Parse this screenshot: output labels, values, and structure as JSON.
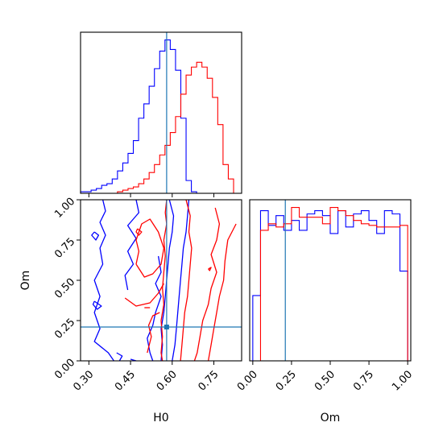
{
  "chart_data": {
    "type": "corner",
    "colors": {
      "series_a": "#0000ff",
      "series_b": "#ff0000",
      "truth": "#1f77b4",
      "axes": "#000000"
    },
    "parameters": [
      "H0",
      "Om"
    ],
    "truth": {
      "H0": 0.58,
      "Om": 0.21
    },
    "panels": [
      {
        "id": "hist_H0",
        "type": "histogram-step",
        "xlim": [
          0.27,
          0.85
        ],
        "bins": [
          0.27,
          0.289,
          0.308,
          0.327,
          0.346,
          0.365,
          0.384,
          0.403,
          0.422,
          0.441,
          0.46,
          0.479,
          0.498,
          0.517,
          0.536,
          0.555,
          0.574,
          0.593,
          0.612,
          0.631,
          0.65,
          0.669,
          0.688,
          0.707,
          0.726,
          0.745,
          0.764,
          0.783,
          0.802,
          0.821,
          0.84
        ],
        "series": [
          {
            "color_key": "series_a",
            "counts": [
              1,
              1,
              2,
              3,
              5,
              6,
              9,
              14,
              19,
              25,
              33,
              47,
              56,
              67,
              78,
              89,
              96,
              90,
              77,
              47,
              8,
              1,
              0,
              0,
              0,
              0,
              0,
              0,
              0,
              0
            ]
          },
          {
            "color_key": "series_b",
            "counts": [
              0,
              0,
              0,
              0,
              0,
              0,
              0,
              1,
              2,
              3,
              4,
              6,
              9,
              13,
              18,
              24,
              30,
              38,
              48,
              62,
              74,
              79,
              82,
              79,
              72,
              60,
              43,
              18,
              9,
              0
            ]
          }
        ]
      },
      {
        "id": "hist_Om",
        "type": "histogram-step",
        "xlim": [
          -0.02,
          1.02
        ],
        "bins": [
          0.0,
          0.05,
          0.1,
          0.15,
          0.2,
          0.25,
          0.3,
          0.35,
          0.4,
          0.45,
          0.5,
          0.55,
          0.6,
          0.65,
          0.7,
          0.75,
          0.8,
          0.85,
          0.9,
          0.95,
          1.0
        ],
        "series": [
          {
            "color_key": "series_a",
            "counts": [
              40,
              92,
              83,
              89,
              80,
              86,
              80,
              90,
              92,
              89,
              78,
              92,
              82,
              90,
              92,
              86,
              78,
              92,
              90,
              55
            ]
          },
          {
            "color_key": "series_b",
            "counts": [
              0,
              80,
              84,
              82,
              84,
              94,
              88,
              88,
              88,
              84,
              94,
              92,
              89,
              86,
              84,
              83,
              82,
              82,
              82,
              83
            ]
          }
        ]
      },
      {
        "id": "contour_H0_Om",
        "type": "contour",
        "xlim": [
          0.27,
          0.85
        ],
        "ylim": [
          0.0,
          1.0
        ],
        "series": [
          {
            "color_key": "series_a",
            "lines": [
              [
                [
                  0.35,
                  1.0
                ],
                [
                  0.36,
                  0.93
                ],
                [
                  0.34,
                  0.86
                ],
                [
                  0.36,
                  0.78
                ],
                [
                  0.34,
                  0.7
                ],
                [
                  0.35,
                  0.6
                ],
                [
                  0.32,
                  0.5
                ],
                [
                  0.34,
                  0.4
                ],
                [
                  0.32,
                  0.3
                ],
                [
                  0.34,
                  0.2
                ],
                [
                  0.32,
                  0.12
                ],
                [
                  0.37,
                  0.05
                ],
                [
                  0.39,
                  0.0
                ]
              ],
              [
                [
                  0.47,
                  1.0
                ],
                [
                  0.48,
                  0.92
                ],
                [
                  0.44,
                  0.84
                ],
                [
                  0.47,
                  0.76
                ],
                [
                  0.44,
                  0.68
                ],
                [
                  0.46,
                  0.6
                ],
                [
                  0.43,
                  0.53
                ],
                [
                  0.44,
                  0.44
                ]
              ],
              [
                [
                  0.55,
                  0.65
                ],
                [
                  0.56,
                  0.55
                ],
                [
                  0.54,
                  0.48
                ],
                [
                  0.56,
                  0.4
                ],
                [
                  0.54,
                  0.3
                ],
                [
                  0.53,
                  0.22
                ],
                [
                  0.51,
                  0.14
                ],
                [
                  0.52,
                  0.05
                ],
                [
                  0.53,
                  0.0
                ]
              ],
              [
                [
                  0.59,
                  1.0
                ],
                [
                  0.605,
                  0.9
                ],
                [
                  0.6,
                  0.8
                ],
                [
                  0.59,
                  0.7
                ],
                [
                  0.585,
                  0.6
                ],
                [
                  0.58,
                  0.5
                ],
                [
                  0.575,
                  0.4
                ],
                [
                  0.57,
                  0.3
                ],
                [
                  0.56,
                  0.2
                ],
                [
                  0.565,
                  0.1
                ],
                [
                  0.56,
                  0.0
                ]
              ],
              [
                [
                  0.66,
                  1.0
                ],
                [
                  0.655,
                  0.9
                ],
                [
                  0.65,
                  0.8
                ],
                [
                  0.64,
                  0.7
                ],
                [
                  0.635,
                  0.6
                ],
                [
                  0.63,
                  0.5
                ],
                [
                  0.625,
                  0.4
                ],
                [
                  0.62,
                  0.3
                ],
                [
                  0.615,
                  0.2
                ],
                [
                  0.61,
                  0.1
                ],
                [
                  0.6,
                  0.0
                ]
              ],
              [
                [
                  0.32,
                  0.8
                ],
                [
                  0.335,
                  0.78
                ],
                [
                  0.325,
                  0.75
                ],
                [
                  0.31,
                  0.78
                ],
                [
                  0.32,
                  0.8
                ]
              ],
              [
                [
                  0.32,
                  0.37
                ],
                [
                  0.345,
                  0.34
                ],
                [
                  0.33,
                  0.32
                ],
                [
                  0.315,
                  0.35
                ],
                [
                  0.32,
                  0.37
                ]
              ],
              [
                [
                  0.4,
                  0.05
                ],
                [
                  0.42,
                  0.03
                ],
                [
                  0.41,
                  0.0
                ]
              ],
              [
                [
                  0.45,
                  0.01
                ],
                [
                  0.47,
                  0.0
                ]
              ]
            ]
          },
          {
            "color_key": "series_b",
            "lines": [
              [
                [
                  0.58,
                  1.0
                ],
                [
                  0.575,
                  0.92
                ],
                [
                  0.58,
                  0.85
                ],
                [
                  0.57,
                  0.75
                ],
                [
                  0.575,
                  0.65
                ],
                [
                  0.57,
                  0.55
                ],
                [
                  0.565,
                  0.45
                ],
                [
                  0.57,
                  0.35
                ],
                [
                  0.56,
                  0.25
                ],
                [
                  0.565,
                  0.15
                ],
                [
                  0.56,
                  0.05
                ],
                [
                  0.565,
                  0.0
                ]
              ],
              [
                [
                  0.65,
                  1.0
                ],
                [
                  0.665,
                  0.9
                ],
                [
                  0.66,
                  0.8
                ],
                [
                  0.67,
                  0.7
                ],
                [
                  0.665,
                  0.6
                ],
                [
                  0.66,
                  0.5
                ],
                [
                  0.655,
                  0.4
                ],
                [
                  0.645,
                  0.3
                ],
                [
                  0.64,
                  0.2
                ],
                [
                  0.635,
                  0.1
                ],
                [
                  0.63,
                  0.0
                ]
              ],
              [
                [
                  0.755,
                  0.95
                ],
                [
                  0.77,
                  0.85
                ],
                [
                  0.76,
                  0.75
                ],
                [
                  0.74,
                  0.66
                ],
                [
                  0.76,
                  0.55
                ],
                [
                  0.74,
                  0.45
                ],
                [
                  0.73,
                  0.35
                ],
                [
                  0.71,
                  0.25
                ],
                [
                  0.7,
                  0.15
                ],
                [
                  0.69,
                  0.05
                ],
                [
                  0.68,
                  0.0
                ]
              ],
              [
                [
                  0.83,
                  0.85
                ],
                [
                  0.8,
                  0.75
                ],
                [
                  0.79,
                  0.62
                ],
                [
                  0.785,
                  0.5
                ],
                [
                  0.77,
                  0.4
                ],
                [
                  0.76,
                  0.3
                ],
                [
                  0.75,
                  0.2
                ],
                [
                  0.74,
                  0.1
                ],
                [
                  0.73,
                  0.0
                ]
              ],
              [
                [
                  0.47,
                  0.6
                ],
                [
                  0.5,
                  0.52
                ],
                [
                  0.53,
                  0.54
                ],
                [
                  0.56,
                  0.6
                ],
                [
                  0.57,
                  0.7
                ],
                [
                  0.55,
                  0.8
                ],
                [
                  0.52,
                  0.88
                ],
                [
                  0.49,
                  0.85
                ],
                [
                  0.47,
                  0.75
                ],
                [
                  0.48,
                  0.68
                ],
                [
                  0.47,
                  0.6
                ]
              ],
              [
                [
                  0.43,
                  0.39
                ],
                [
                  0.47,
                  0.34
                ],
                [
                  0.52,
                  0.36
                ],
                [
                  0.55,
                  0.42
                ],
                [
                  0.57,
                  0.48
                ]
              ],
              [
                [
                  0.475,
                  0.82
                ],
                [
                  0.49,
                  0.8
                ],
                [
                  0.48,
                  0.78
                ],
                [
                  0.47,
                  0.8
                ],
                [
                  0.475,
                  0.82
                ]
              ],
              [
                [
                  0.51,
                  0.05
                ],
                [
                  0.525,
                  0.15
                ],
                [
                  0.515,
                  0.22
                ],
                [
                  0.53,
                  0.28
                ],
                [
                  0.555,
                  0.3
                ]
              ],
              [
                [
                  0.5,
                  0.33
                ],
                [
                  0.52,
                  0.33
                ]
              ],
              [
                [
                  0.73,
                  0.57
                ],
                [
                  0.74,
                  0.58
                ],
                [
                  0.735,
                  0.56
                ],
                [
                  0.73,
                  0.57
                ]
              ]
            ]
          }
        ]
      }
    ],
    "axes": {
      "H0": {
        "ticks": [
          "0.30",
          "0.45",
          "0.60",
          "0.75"
        ],
        "tick_values": [
          0.3,
          0.45,
          0.6,
          0.75
        ],
        "xlabel": "H0"
      },
      "Om_x": {
        "ticks": [
          "0.00",
          "0.25",
          "0.50",
          "0.75",
          "1.00"
        ],
        "tick_values": [
          0.0,
          0.25,
          0.5,
          0.75,
          1.0
        ],
        "xlabel": "Om"
      },
      "Om_y": {
        "ticks": [
          "0.00",
          "0.25",
          "0.50",
          "0.75",
          "1.00"
        ],
        "tick_values": [
          0.0,
          0.25,
          0.5,
          0.75,
          1.0
        ],
        "ylabel": "Om"
      }
    },
    "grid": false
  }
}
